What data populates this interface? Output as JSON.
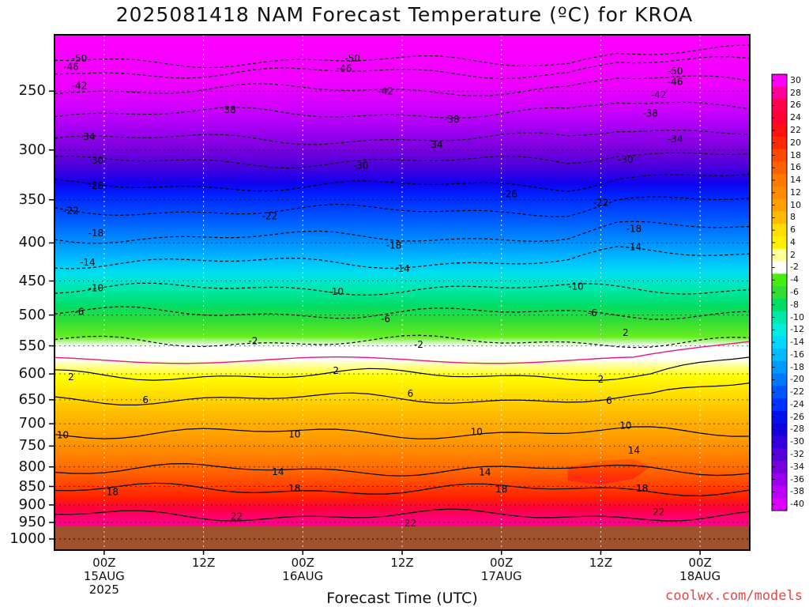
{
  "chart_data": {
    "type": "heatmap",
    "title": "2025081418 NAM Forecast Temperature (ºC) for KROA",
    "xlabel": "Forecast Time (UTC)",
    "ylabel": "",
    "y_ticks": [
      "250",
      "300",
      "350",
      "400",
      "450",
      "500",
      "550",
      "600",
      "650",
      "700",
      "750",
      "800",
      "850",
      "900",
      "950",
      "1000"
    ],
    "y_values": [
      250,
      300,
      350,
      400,
      450,
      500,
      550,
      600,
      650,
      700,
      750,
      800,
      850,
      900,
      950,
      1000
    ],
    "x_ticks": [
      {
        "hour": 0,
        "lines": [
          "00Z",
          "15AUG",
          "2025"
        ]
      },
      {
        "hour": 12,
        "lines": [
          "12Z"
        ]
      },
      {
        "hour": 24,
        "lines": [
          "00Z",
          "16AUG"
        ]
      },
      {
        "hour": 36,
        "lines": [
          "12Z"
        ]
      },
      {
        "hour": 48,
        "lines": [
          "00Z",
          "17AUG"
        ]
      },
      {
        "hour": 60,
        "lines": [
          "12Z"
        ]
      },
      {
        "hour": 72,
        "lines": [
          "00Z",
          "18AUG"
        ]
      }
    ],
    "x_range_hours": [
      -6,
      78
    ],
    "y_range_hpa": [
      210,
      1035
    ],
    "ground_pressure_hpa": 962,
    "colorbar_labels": [
      "30",
      "28",
      "26",
      "24",
      "22",
      "20",
      "18",
      "16",
      "14",
      "12",
      "10",
      "8",
      "6",
      "4",
      "2",
      "-2",
      "-4",
      "-6",
      "-8",
      "-10",
      "-12",
      "-14",
      "-16",
      "-18",
      "-20",
      "-22",
      "-24",
      "-26",
      "-28",
      "-30",
      "-32",
      "-34",
      "-36",
      "-38",
      "-40"
    ],
    "colorbar_colors": [
      "#ff00ff",
      "#ff0099",
      "#ff004d",
      "#ff0030",
      "#ff1010",
      "#ff2800",
      "#ff4800",
      "#ff6000",
      "#ff7a00",
      "#ff8c00",
      "#ffa000",
      "#ffbb00",
      "#ffdd00",
      "#fff000",
      "#ffff99",
      "#ffffff",
      "#44ee11",
      "#33dd33",
      "#00dd66",
      "#00e8aa",
      "#00eedd",
      "#00d8ff",
      "#00bbff",
      "#0099ff",
      "#0077ff",
      "#0055ff",
      "#0033ff",
      "#0011ee",
      "#1100dd",
      "#3300dd",
      "#5500dd",
      "#7700dd",
      "#9900ee",
      "#bb00ff",
      "#dd00ff"
    ],
    "contour_levels_dashed": [
      -50,
      -46,
      -42,
      -38,
      -34,
      -30,
      -26,
      -22,
      -18,
      -14,
      -10,
      -6,
      -2
    ],
    "contour_levels_solid": [
      2,
      6,
      10,
      14,
      18,
      22
    ],
    "contour_labels": [
      {
        "t": -3,
        "p": 226,
        "v": "-50"
      },
      {
        "t": 30,
        "p": 226,
        "v": "-50"
      },
      {
        "t": 69,
        "p": 235,
        "v": "-50"
      },
      {
        "t": -4,
        "p": 232,
        "v": "-46"
      },
      {
        "t": 29,
        "p": 233,
        "v": "-46"
      },
      {
        "t": 69,
        "p": 243,
        "v": "-46"
      },
      {
        "t": -3,
        "p": 246,
        "v": "-42"
      },
      {
        "t": 34,
        "p": 250,
        "v": "-42"
      },
      {
        "t": 67,
        "p": 253,
        "v": "-42"
      },
      {
        "t": 15,
        "p": 265,
        "v": "-38"
      },
      {
        "t": 42,
        "p": 273,
        "v": "-38"
      },
      {
        "t": 66,
        "p": 268,
        "v": "-38"
      },
      {
        "t": -2,
        "p": 288,
        "v": "-34"
      },
      {
        "t": 40,
        "p": 295,
        "v": "-34"
      },
      {
        "t": 69,
        "p": 290,
        "v": "-34"
      },
      {
        "t": -1,
        "p": 310,
        "v": "-30"
      },
      {
        "t": 31,
        "p": 315,
        "v": "-30"
      },
      {
        "t": 63,
        "p": 309,
        "v": "-30"
      },
      {
        "t": -1,
        "p": 335,
        "v": "-26"
      },
      {
        "t": 49,
        "p": 344,
        "v": "-26"
      },
      {
        "t": -4,
        "p": 362,
        "v": "-22"
      },
      {
        "t": 20,
        "p": 368,
        "v": "-22"
      },
      {
        "t": 60,
        "p": 353,
        "v": "-22"
      },
      {
        "t": -1,
        "p": 388,
        "v": "-18"
      },
      {
        "t": 35,
        "p": 403,
        "v": "-18"
      },
      {
        "t": 64,
        "p": 383,
        "v": "-18"
      },
      {
        "t": -2,
        "p": 425,
        "v": "-14"
      },
      {
        "t": 36,
        "p": 433,
        "v": "-14"
      },
      {
        "t": 64,
        "p": 405,
        "v": "-14"
      },
      {
        "t": -1,
        "p": 460,
        "v": "-10"
      },
      {
        "t": 28,
        "p": 465,
        "v": "-10"
      },
      {
        "t": 57,
        "p": 458,
        "v": "-10"
      },
      {
        "t": -3,
        "p": 495,
        "v": "-6"
      },
      {
        "t": 34,
        "p": 506,
        "v": "-6"
      },
      {
        "t": 59,
        "p": 497,
        "v": "-6"
      },
      {
        "t": 18,
        "p": 542,
        "v": "-2"
      },
      {
        "t": 38,
        "p": 548,
        "v": "-2"
      },
      {
        "t": 63,
        "p": 528,
        "v": "2"
      },
      {
        "t": -4,
        "p": 606,
        "v": "2"
      },
      {
        "t": 28,
        "p": 594,
        "v": "2"
      },
      {
        "t": 60,
        "p": 610,
        "v": "2"
      },
      {
        "t": 5,
        "p": 650,
        "v": "6"
      },
      {
        "t": 37,
        "p": 638,
        "v": "6"
      },
      {
        "t": 61,
        "p": 652,
        "v": "6"
      },
      {
        "t": -5,
        "p": 725,
        "v": "10"
      },
      {
        "t": 23,
        "p": 723,
        "v": "10"
      },
      {
        "t": 45,
        "p": 718,
        "v": "10"
      },
      {
        "t": 63,
        "p": 704,
        "v": "10"
      },
      {
        "t": 21,
        "p": 812,
        "v": "14"
      },
      {
        "t": 46,
        "p": 813,
        "v": "14"
      },
      {
        "t": 64,
        "p": 760,
        "v": "14"
      },
      {
        "t": 1,
        "p": 865,
        "v": "18"
      },
      {
        "t": 23,
        "p": 855,
        "v": "18"
      },
      {
        "t": 48,
        "p": 857,
        "v": "18"
      },
      {
        "t": 65,
        "p": 855,
        "v": "18"
      },
      {
        "t": 16,
        "p": 933,
        "v": "22"
      },
      {
        "t": 37,
        "p": 952,
        "v": "22"
      },
      {
        "t": 67,
        "p": 920,
        "v": "22"
      }
    ]
  },
  "watermark": "coolwx.com/models"
}
